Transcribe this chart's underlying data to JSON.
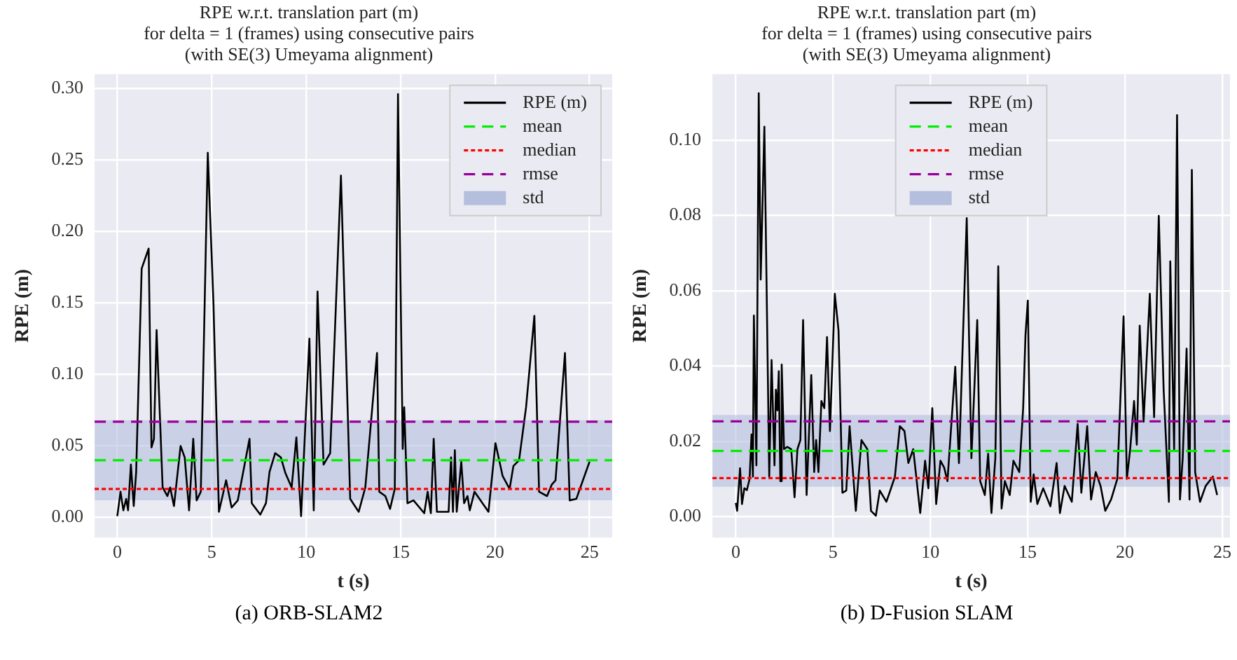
{
  "chart_data": [
    {
      "type": "line",
      "title": "RPE w.r.t. translation part (m)\nfor delta = 1 (frames) using consecutive pairs\n(with SE(3) Umeyama alignment)",
      "xlabel": "t (s)",
      "ylabel": "RPE (m)",
      "series": [
        {
          "name": "RPE (m)",
          "color": "#000000",
          "x": [
            0,
            0.17,
            0.32,
            0.47,
            0.57,
            0.72,
            0.87,
            1.0,
            1.29,
            1.66,
            1.81,
            1.94,
            2.08,
            2.4,
            2.65,
            2.8,
            3.0,
            3.35,
            3.57,
            3.8,
            4.02,
            4.2,
            4.42,
            4.79,
            5.09,
            5.38,
            5.76,
            6.05,
            6.38,
            7.0,
            7.12,
            7.57,
            7.87,
            8.06,
            8.36,
            8.66,
            8.9,
            9.23,
            9.48,
            9.73,
            10.17,
            10.4,
            10.6,
            10.92,
            11.27,
            11.84,
            12.33,
            12.78,
            13.13,
            13.75,
            13.87,
            14.19,
            14.44,
            14.69,
            14.86,
            15.11,
            15.19,
            15.36,
            15.68,
            16.25,
            16.43,
            16.6,
            16.75,
            16.92,
            17.3,
            17.54,
            17.67,
            17.77,
            17.87,
            17.97,
            18.21,
            18.36,
            18.54,
            18.66,
            18.91,
            19.65,
            20.02,
            20.4,
            20.77,
            20.97,
            21.27,
            21.64,
            22.08,
            22.33,
            22.75,
            23.0,
            23.2,
            23.7,
            23.95,
            24.3,
            25.0
          ],
          "values": [
            0.001,
            0.018,
            0.005,
            0.013,
            0.005,
            0.037,
            0.008,
            0.032,
            0.174,
            0.188,
            0.049,
            0.055,
            0.131,
            0.021,
            0.015,
            0.021,
            0.008,
            0.05,
            0.042,
            0.005,
            0.055,
            0.012,
            0.018,
            0.255,
            0.15,
            0.004,
            0.026,
            0.007,
            0.012,
            0.055,
            0.01,
            0.002,
            0.01,
            0.032,
            0.045,
            0.042,
            0.031,
            0.021,
            0.056,
            0.001,
            0.125,
            0.005,
            0.158,
            0.037,
            0.045,
            0.239,
            0.013,
            0.004,
            0.021,
            0.115,
            0.018,
            0.015,
            0.006,
            0.02,
            0.296,
            0.048,
            0.077,
            0.01,
            0.012,
            0.003,
            0.018,
            0.003,
            0.055,
            0.004,
            0.004,
            0.004,
            0.042,
            0.004,
            0.047,
            0.004,
            0.039,
            0.01,
            0.015,
            0.005,
            0.018,
            0.004,
            0.052,
            0.029,
            0.02,
            0.036,
            0.04,
            0.077,
            0.141,
            0.018,
            0.015,
            0.023,
            0.026,
            0.115,
            0.012,
            0.013,
            0.039
          ]
        }
      ],
      "ref_lines": [
        {
          "axis": "y",
          "value": 0.04,
          "label": "mean",
          "color": "#00ee00",
          "line_style": "dashed"
        },
        {
          "axis": "y",
          "value": 0.02,
          "label": "median",
          "color": "#ff0000",
          "line_style": "dotted"
        },
        {
          "axis": "y",
          "value": 0.067,
          "label": "rmse",
          "color": "#990099",
          "line_style": "dashed"
        }
      ],
      "bands": [
        {
          "axis": "y",
          "from": 0.012,
          "to": 0.068,
          "label": "std",
          "color": "#b4bfdd"
        }
      ],
      "xlim": [
        -1.2,
        26.2
      ],
      "xticks": [
        0,
        5,
        10,
        15,
        20,
        25
      ],
      "ylim": [
        -0.014,
        0.31
      ],
      "yticks": [
        {
          "value": 0,
          "label": "0.00"
        },
        {
          "value": 0.05,
          "label": "0.05"
        },
        {
          "value": 0.1,
          "label": "0.10"
        },
        {
          "value": 0.15,
          "label": "0.15"
        },
        {
          "value": 0.2,
          "label": "0.20"
        },
        {
          "value": 0.25,
          "label": "0.25"
        },
        {
          "value": 0.3,
          "label": "0.30"
        }
      ],
      "grid": true,
      "legend": "top right",
      "marker": "none",
      "line_style": "solid",
      "annotations": [
        "(a) ORB-SLAM2"
      ]
    },
    {
      "type": "line",
      "title": "RPE w.r.t. translation part (m)\nfor delta = 1 (frames) using consecutive pairs\n(with SE(3) Umeyama alignment)",
      "xlabel": "t (s)",
      "ylabel": "RPE (m)",
      "series": [
        {
          "name": "RPE (m)",
          "color": "#000000",
          "x": [
            0,
            0.07,
            0.22,
            0.32,
            0.44,
            0.57,
            0.71,
            0.81,
            0.88,
            0.93,
            1.06,
            1.18,
            1.28,
            1.47,
            1.72,
            1.84,
            1.99,
            2.06,
            2.14,
            2.21,
            2.29,
            2.36,
            2.48,
            2.65,
            2.85,
            3.02,
            3.17,
            3.32,
            3.46,
            3.64,
            3.88,
            4.03,
            4.13,
            4.25,
            4.4,
            4.55,
            4.69,
            4.84,
            5.09,
            5.28,
            5.48,
            5.68,
            5.85,
            6.17,
            6.46,
            6.76,
            6.95,
            7.2,
            7.4,
            7.74,
            7.94,
            8.18,
            8.43,
            8.67,
            8.87,
            9.12,
            9.48,
            9.73,
            9.9,
            10.1,
            10.3,
            10.52,
            10.71,
            10.88,
            11.08,
            11.28,
            11.47,
            11.87,
            12.11,
            12.41,
            12.56,
            12.8,
            12.97,
            13.14,
            13.34,
            13.49,
            13.66,
            13.83,
            14.08,
            14.27,
            14.57,
            14.77,
            14.89,
            15.01,
            15.16,
            15.31,
            15.5,
            15.8,
            16.17,
            16.49,
            16.66,
            16.9,
            17.27,
            17.57,
            17.76,
            18.06,
            18.26,
            18.5,
            18.75,
            18.99,
            19.29,
            19.61,
            19.93,
            20.1,
            20.27,
            20.47,
            20.61,
            20.76,
            20.96,
            21.28,
            21.5,
            21.74,
            21.99,
            22.26,
            22.33,
            22.53,
            22.68,
            22.83,
            22.97,
            23.17,
            23.32,
            23.44,
            23.61,
            23.86,
            24.15,
            24.52,
            24.74
          ],
          "values": [
            0.0036,
            0.0015,
            0.0128,
            0.0033,
            0.0075,
            0.007,
            0.01,
            0.0218,
            0.0106,
            0.0534,
            0.0136,
            0.1125,
            0.063,
            0.1036,
            0.0106,
            0.0416,
            0.0136,
            0.0337,
            0.0282,
            0.0386,
            0.0094,
            0.0404,
            0.0179,
            0.0185,
            0.0179,
            0.0051,
            0.0179,
            0.0203,
            0.0522,
            0.0057,
            0.0376,
            0.0118,
            0.0203,
            0.0118,
            0.0307,
            0.0288,
            0.0477,
            0.0227,
            0.0592,
            0.0495,
            0.0063,
            0.0069,
            0.024,
            0.0015,
            0.0203,
            0.0179,
            0.0015,
            0.0002,
            0.0069,
            0.0039,
            0.0069,
            0.0106,
            0.024,
            0.0227,
            0.0142,
            0.0179,
            0.0009,
            0.0148,
            0.0075,
            0.0288,
            0.0033,
            0.0148,
            0.013,
            0.0094,
            0.0246,
            0.0398,
            0.0142,
            0.0793,
            0.0155,
            0.0522,
            0.0094,
            0.0057,
            0.0167,
            0.0009,
            0.0155,
            0.0665,
            0.0021,
            0.0094,
            0.0057,
            0.0148,
            0.0118,
            0.0288,
            0.0483,
            0.0574,
            0.0039,
            0.0112,
            0.0033,
            0.0075,
            0.0027,
            0.0142,
            0.0009,
            0.0081,
            0.0039,
            0.0246,
            0.0063,
            0.024,
            0.0045,
            0.0118,
            0.0081,
            0.0015,
            0.0045,
            0.01,
            0.0532,
            0.01,
            0.0179,
            0.0307,
            0.0191,
            0.0507,
            0.0252,
            0.0592,
            0.0264,
            0.0799,
            0.0337,
            0.0039,
            0.0678,
            0.0179,
            0.1067,
            0.0045,
            0.0155,
            0.0446,
            0.0045,
            0.0921,
            0.0118,
            0.0039,
            0.0081,
            0.0106,
            0.0057
          ]
        }
      ],
      "ref_lines": [
        {
          "axis": "y",
          "value": 0.0174,
          "label": "mean",
          "color": "#00ee00",
          "line_style": "dashed"
        },
        {
          "axis": "y",
          "value": 0.0102,
          "label": "median",
          "color": "#ff0000",
          "line_style": "dotted"
        },
        {
          "axis": "y",
          "value": 0.0253,
          "label": "rmse",
          "color": "#990099",
          "line_style": "dashed"
        }
      ],
      "bands": [
        {
          "axis": "y",
          "from": 0.0079,
          "to": 0.027,
          "label": "std",
          "color": "#b4bfdd"
        }
      ],
      "xlim": [
        -1.2,
        25.4
      ],
      "xticks": [
        0,
        5,
        10,
        15,
        20,
        25
      ],
      "ylim": [
        -0.0056,
        0.1176
      ],
      "yticks": [
        {
          "value": 0,
          "label": "0.00"
        },
        {
          "value": 0.02,
          "label": "0.02"
        },
        {
          "value": 0.04,
          "label": "0.04"
        },
        {
          "value": 0.06,
          "label": "0.06"
        },
        {
          "value": 0.08,
          "label": "0.08"
        },
        {
          "value": 0.1,
          "label": "0.10"
        }
      ],
      "grid": true,
      "legend": "top",
      "marker": "none",
      "line_style": "solid",
      "annotations": [
        "(b) D-Fusion SLAM"
      ]
    }
  ]
}
